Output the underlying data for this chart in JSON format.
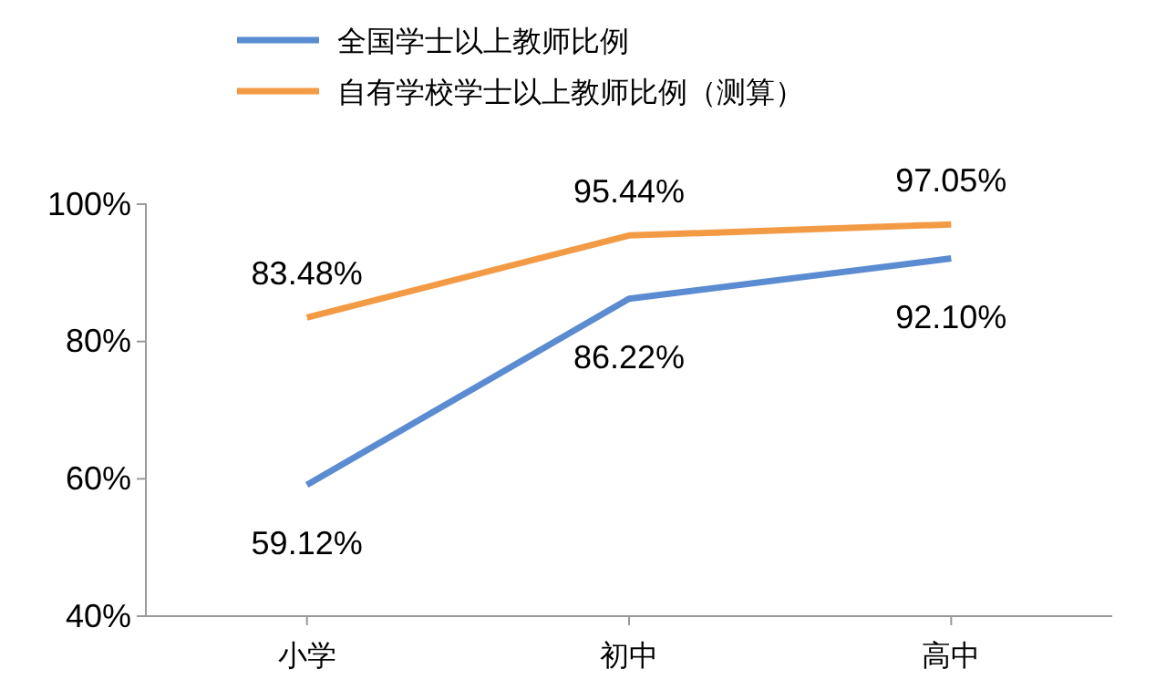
{
  "chart_data": {
    "type": "line",
    "categories": [
      "小学",
      "初中",
      "高中"
    ],
    "series": [
      {
        "name": "全国学士以上教师比例",
        "color": "#5b8bd1",
        "values": [
          59.12,
          86.22,
          92.1
        ],
        "value_labels": [
          "59.12%",
          "86.22%",
          "92.10%"
        ]
      },
      {
        "name": "自有学校学士以上教师比例（测算）",
        "color": "#f39a45",
        "values": [
          83.48,
          95.44,
          97.05
        ],
        "value_labels": [
          "83.48%",
          "95.44%",
          "97.05%"
        ]
      }
    ],
    "ylim": [
      40,
      100
    ],
    "yticks": [
      {
        "value": 40,
        "label": "40%"
      },
      {
        "value": 60,
        "label": "60%"
      },
      {
        "value": 80,
        "label": "80%"
      },
      {
        "value": 100,
        "label": "100%"
      }
    ],
    "legend": "top",
    "grid": false,
    "marker": "none",
    "line_style": "solid"
  }
}
